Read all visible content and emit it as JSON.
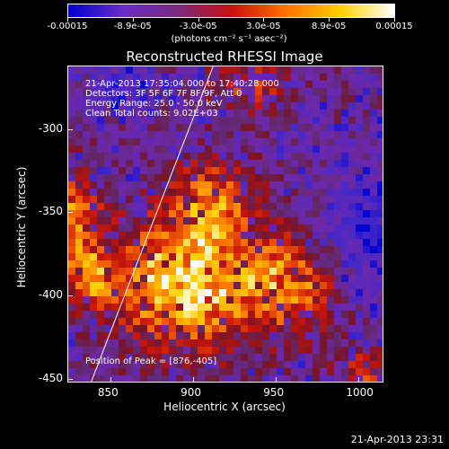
{
  "colorbar": {
    "tick_labels": [
      "-0.00015",
      "-8.9e-05",
      "-3.0e-05",
      "3.0e-05",
      "8.9e-05",
      "0.00015"
    ],
    "units": "(photons cm⁻² s⁻¹ asec⁻²)",
    "min": -0.00015,
    "max": 0.00015,
    "colormap": [
      "#0000d0",
      "#6a2cc8",
      "#7a2a80",
      "#c81010",
      "#ff7000",
      "#ffd000",
      "#ffffff"
    ]
  },
  "title": "Reconstructed RHESSI Image",
  "info_lines": [
    "21-Apr-2013 17:35:04.000 to 17:40:28.000",
    "Detectors: 3F 5F 6F 7F 8F/9F, Att 0",
    "Energy Range: 25.0 - 50.0 keV",
    "Clean     Total counts: 9.02E+03"
  ],
  "peak_text": "Position of Peak = [876,-405]",
  "xaxis": {
    "label": "Heliocentric X (arcsec)",
    "ticks": [
      "850",
      "900",
      "950",
      "1000"
    ],
    "range": [
      824,
      1015
    ]
  },
  "yaxis": {
    "label": "Heliocentric Y (arcsec)",
    "ticks": [
      "-300",
      "-350",
      "-400",
      "-450"
    ],
    "range": [
      -452,
      -262
    ]
  },
  "timestamp": "21-Apr-2013 23:31",
  "chart_data": {
    "type": "heatmap",
    "title": "Reconstructed RHESSI Image",
    "xlabel": "Heliocentric X (arcsec)",
    "ylabel": "Heliocentric Y (arcsec)",
    "xlim": [
      824,
      1015
    ],
    "ylim": [
      -452,
      -262
    ],
    "clim": [
      -0.00015,
      0.00015
    ],
    "peak": [
      876,
      -405
    ],
    "limb_line": [
      [
        838,
        -452
      ],
      [
        912,
        -262
      ]
    ]
  }
}
